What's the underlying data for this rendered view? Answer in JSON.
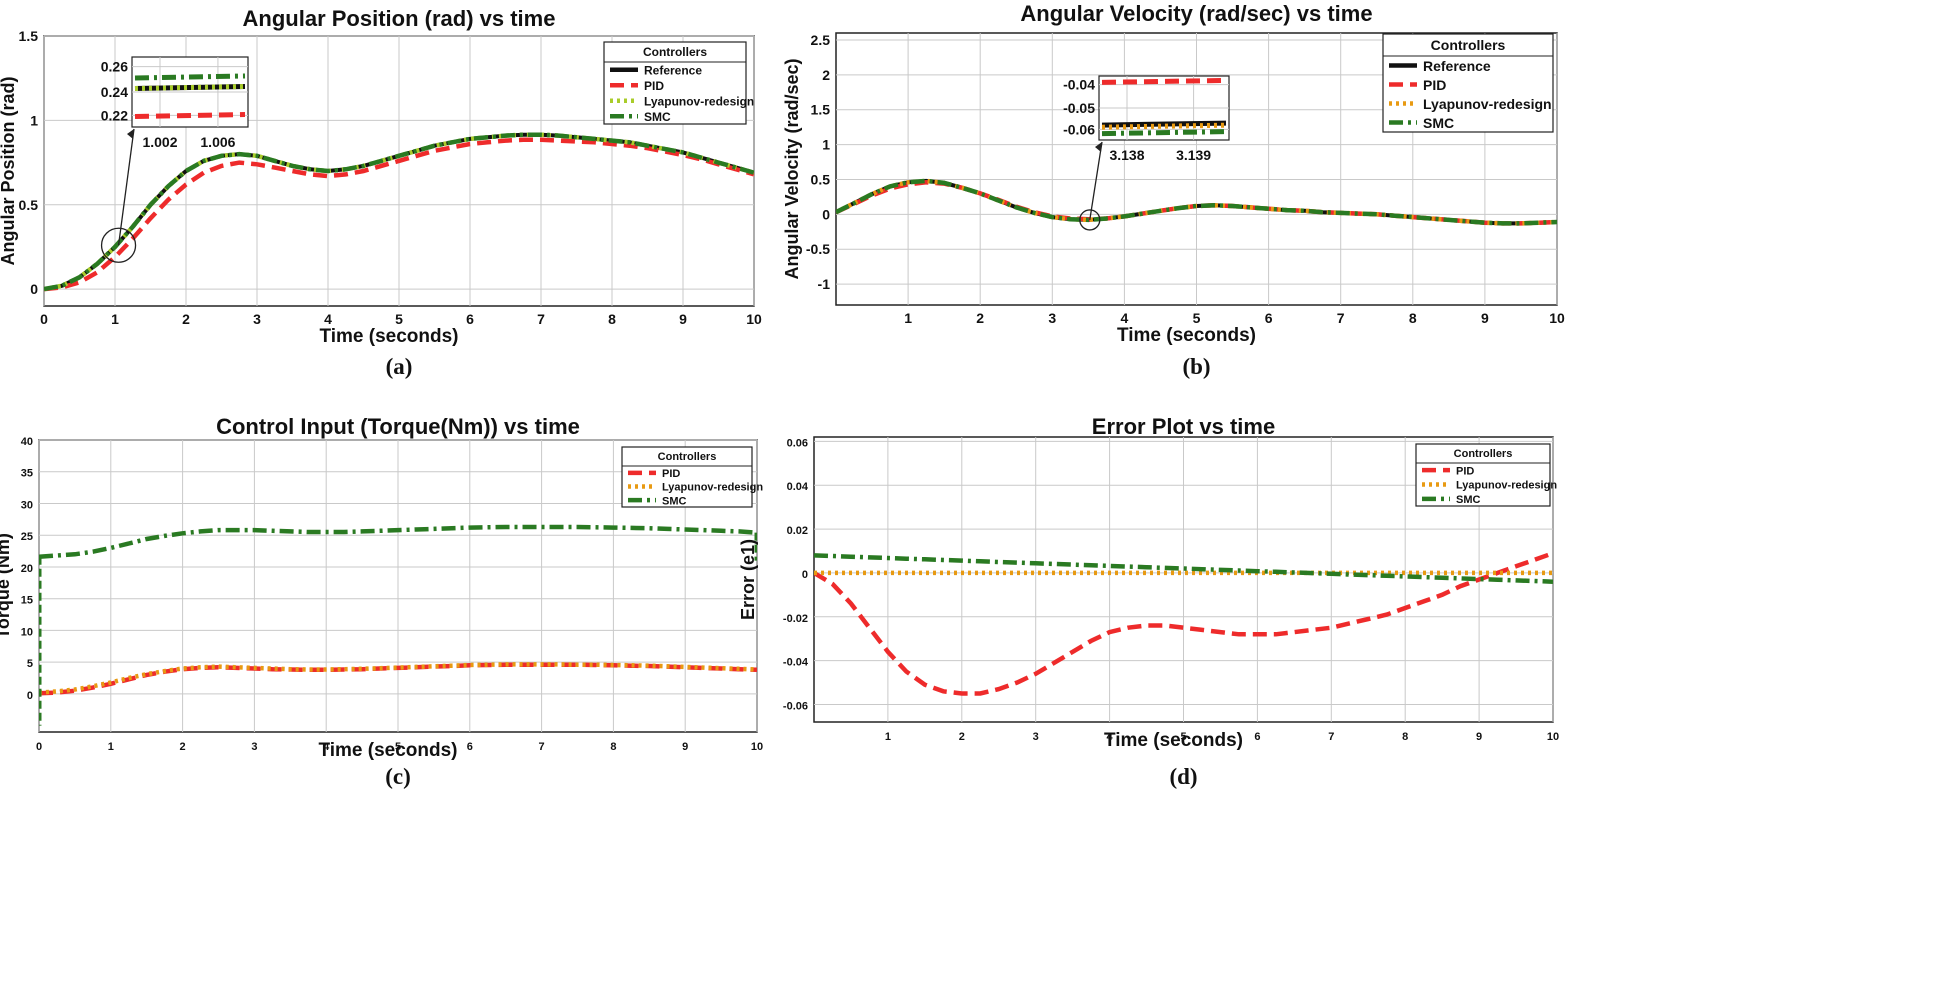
{
  "colors": {
    "reference": "#111111",
    "pid": "#ee2b2b",
    "lyap_ab": "#a9cc2a",
    "lyap_cd": "#e89a12",
    "smc": "#2a7a22",
    "grid": "#c9c9c9",
    "axis": "#222222"
  },
  "legend_title": "Controllers",
  "xlabel_common": "Time (seconds)",
  "chart_data": [
    {
      "id": "a",
      "type": "line",
      "title": "Angular Position (rad) vs time",
      "xlabel": "Time (seconds)",
      "ylabel": "Angular Position (rad)",
      "caption": "(a)",
      "xlim": [
        0,
        10
      ],
      "ylim": [
        -0.1,
        1.5
      ],
      "xticks": [
        0,
        1,
        2,
        3,
        4,
        5,
        6,
        7,
        8,
        9,
        10
      ],
      "yticks": [
        0,
        0.5,
        1,
        1.5
      ],
      "x": [
        0,
        0.25,
        0.5,
        0.75,
        1,
        1.25,
        1.5,
        1.75,
        2,
        2.25,
        2.5,
        2.75,
        3,
        3.25,
        3.5,
        3.75,
        4,
        4.25,
        4.5,
        4.75,
        5,
        5.25,
        5.5,
        5.75,
        6,
        6.25,
        6.5,
        6.75,
        7,
        7.25,
        7.5,
        7.75,
        8,
        8.25,
        8.5,
        8.75,
        9,
        9.25,
        9.5,
        9.75,
        10
      ],
      "legend_title": "Controllers",
      "series": [
        {
          "name": "Reference",
          "style": "solid",
          "color_key": "reference",
          "values": [
            0,
            0.02,
            0.07,
            0.15,
            0.25,
            0.37,
            0.5,
            0.61,
            0.7,
            0.76,
            0.79,
            0.8,
            0.79,
            0.76,
            0.73,
            0.71,
            0.7,
            0.71,
            0.73,
            0.76,
            0.79,
            0.82,
            0.85,
            0.87,
            0.89,
            0.9,
            0.91,
            0.915,
            0.915,
            0.91,
            0.9,
            0.89,
            0.88,
            0.87,
            0.85,
            0.83,
            0.81,
            0.78,
            0.75,
            0.72,
            0.69
          ]
        },
        {
          "name": "PID",
          "style": "dash",
          "color_key": "pid",
          "values": [
            0,
            0.01,
            0.04,
            0.1,
            0.19,
            0.3,
            0.42,
            0.53,
            0.62,
            0.69,
            0.73,
            0.75,
            0.74,
            0.72,
            0.7,
            0.68,
            0.67,
            0.68,
            0.7,
            0.73,
            0.76,
            0.79,
            0.82,
            0.84,
            0.86,
            0.87,
            0.88,
            0.885,
            0.885,
            0.88,
            0.875,
            0.87,
            0.86,
            0.85,
            0.835,
            0.815,
            0.795,
            0.77,
            0.74,
            0.71,
            0.68
          ]
        },
        {
          "name": "Lyapunov-redesign",
          "style": "dot",
          "color_key": "lyap_ab",
          "values": [
            0,
            0.02,
            0.07,
            0.15,
            0.25,
            0.37,
            0.5,
            0.61,
            0.7,
            0.76,
            0.79,
            0.8,
            0.79,
            0.76,
            0.73,
            0.71,
            0.7,
            0.71,
            0.73,
            0.76,
            0.79,
            0.82,
            0.85,
            0.87,
            0.89,
            0.9,
            0.91,
            0.915,
            0.915,
            0.91,
            0.9,
            0.89,
            0.88,
            0.87,
            0.85,
            0.83,
            0.81,
            0.78,
            0.75,
            0.72,
            0.69
          ]
        },
        {
          "name": "SMC",
          "style": "dashdot",
          "color_key": "smc",
          "values": [
            0,
            0.02,
            0.07,
            0.15,
            0.25,
            0.37,
            0.5,
            0.61,
            0.7,
            0.76,
            0.79,
            0.8,
            0.79,
            0.76,
            0.73,
            0.71,
            0.7,
            0.71,
            0.73,
            0.76,
            0.79,
            0.82,
            0.85,
            0.87,
            0.89,
            0.9,
            0.91,
            0.915,
            0.915,
            0.91,
            0.9,
            0.89,
            0.88,
            0.87,
            0.85,
            0.83,
            0.81,
            0.78,
            0.75,
            0.72,
            0.69
          ]
        }
      ],
      "inset": {
        "xticks": [
          "1.002",
          "1.006"
        ],
        "yticks": [
          "0.26",
          "0.24",
          "0.22"
        ],
        "series": [
          {
            "color_key": "smc",
            "style": "dashdot",
            "value": 0.252
          },
          {
            "color_key": "reference",
            "style": "solid",
            "value": 0.243
          },
          {
            "color_key": "lyap_ab",
            "style": "dot",
            "value": 0.243
          },
          {
            "color_key": "pid",
            "style": "dash",
            "value": 0.219
          }
        ],
        "zoom_point": [
          1.05,
          0.26
        ]
      }
    },
    {
      "id": "b",
      "type": "line",
      "title": "Angular Velocity (rad/sec) vs time",
      "xlabel": "Time (seconds)",
      "ylabel": "Angular Velocity (rad/sec)",
      "caption": "(b)",
      "xlim": [
        0,
        10
      ],
      "ylim": [
        -1.3,
        2.6
      ],
      "xticks": [
        1,
        2,
        3,
        4,
        5,
        6,
        7,
        8,
        9,
        10
      ],
      "yticks": [
        -1,
        -0.5,
        0,
        0.5,
        1,
        1.5,
        2,
        2.5
      ],
      "x": [
        0,
        0.25,
        0.5,
        0.75,
        1,
        1.25,
        1.5,
        1.75,
        2,
        2.25,
        2.5,
        2.75,
        3,
        3.25,
        3.5,
        3.75,
        4,
        4.25,
        4.5,
        4.75,
        5,
        5.25,
        5.5,
        5.75,
        6,
        6.25,
        6.5,
        6.75,
        7,
        7.25,
        7.5,
        7.75,
        8,
        8.25,
        8.5,
        8.75,
        9,
        9.25,
        9.5,
        9.75,
        10
      ],
      "legend_title": "Controllers",
      "series": [
        {
          "name": "Reference",
          "style": "solid",
          "color_key": "reference",
          "values": [
            0.03,
            0.16,
            0.29,
            0.4,
            0.46,
            0.48,
            0.45,
            0.38,
            0.3,
            0.2,
            0.1,
            0.02,
            -0.04,
            -0.07,
            -0.08,
            -0.06,
            -0.03,
            0.01,
            0.05,
            0.09,
            0.12,
            0.13,
            0.12,
            0.1,
            0.08,
            0.06,
            0.05,
            0.03,
            0.02,
            0.01,
            0.0,
            -0.02,
            -0.04,
            -0.06,
            -0.08,
            -0.1,
            -0.12,
            -0.13,
            -0.13,
            -0.12,
            -0.11
          ]
        },
        {
          "name": "PID",
          "style": "dash",
          "color_key": "pid",
          "values": [
            0.03,
            0.15,
            0.27,
            0.37,
            0.43,
            0.46,
            0.44,
            0.38,
            0.3,
            0.21,
            0.11,
            0.03,
            -0.03,
            -0.06,
            -0.07,
            -0.06,
            -0.03,
            0.01,
            0.05,
            0.09,
            0.12,
            0.13,
            0.12,
            0.1,
            0.08,
            0.06,
            0.05,
            0.03,
            0.02,
            0.01,
            0.0,
            -0.02,
            -0.04,
            -0.06,
            -0.08,
            -0.1,
            -0.12,
            -0.13,
            -0.13,
            -0.12,
            -0.11
          ]
        },
        {
          "name": "Lyapunov-redesign",
          "style": "dot",
          "color_key": "lyap_cd",
          "values": [
            0.03,
            0.16,
            0.29,
            0.4,
            0.46,
            0.48,
            0.45,
            0.38,
            0.3,
            0.2,
            0.1,
            0.02,
            -0.04,
            -0.07,
            -0.08,
            -0.06,
            -0.03,
            0.01,
            0.05,
            0.09,
            0.12,
            0.13,
            0.12,
            0.1,
            0.08,
            0.06,
            0.05,
            0.03,
            0.02,
            0.01,
            0.0,
            -0.02,
            -0.04,
            -0.06,
            -0.08,
            -0.1,
            -0.12,
            -0.13,
            -0.13,
            -0.12,
            -0.11
          ]
        },
        {
          "name": "SMC",
          "style": "dashdot",
          "color_key": "smc",
          "values": [
            0.03,
            0.16,
            0.29,
            0.4,
            0.46,
            0.48,
            0.45,
            0.38,
            0.3,
            0.2,
            0.1,
            0.02,
            -0.04,
            -0.07,
            -0.08,
            -0.06,
            -0.03,
            0.01,
            0.05,
            0.09,
            0.12,
            0.13,
            0.12,
            0.1,
            0.08,
            0.06,
            0.05,
            0.03,
            0.02,
            0.01,
            0.0,
            -0.02,
            -0.04,
            -0.06,
            -0.08,
            -0.1,
            -0.12,
            -0.13,
            -0.13,
            -0.12,
            -0.11
          ]
        }
      ],
      "inset": {
        "xticks": [
          "3.138",
          "3.139"
        ],
        "yticks": [
          "-0.04",
          "-0.05",
          "-0.06"
        ],
        "series": [
          {
            "color_key": "pid",
            "style": "dash",
            "value": -0.038
          },
          {
            "color_key": "reference",
            "style": "solid",
            "value": -0.058
          },
          {
            "color_key": "lyap_cd",
            "style": "dot",
            "value": -0.059
          },
          {
            "color_key": "smc",
            "style": "dashdot",
            "value": -0.062
          }
        ],
        "zoom_point": [
          3.52,
          -0.08
        ]
      }
    },
    {
      "id": "c",
      "type": "line",
      "title": "Control Input (Torque(Nm)) vs time",
      "xlabel": "Time (seconds)",
      "ylabel": "Torque (Nm)",
      "caption": "(c)",
      "xlim": [
        0,
        10
      ],
      "ylim": [
        -6,
        40
      ],
      "xticks": [
        0,
        1,
        2,
        3,
        4,
        5,
        6,
        7,
        8,
        9,
        10
      ],
      "yticks": [
        0,
        5,
        10,
        15,
        20,
        25,
        30,
        35,
        40
      ],
      "x": [
        0,
        0.25,
        0.5,
        0.75,
        1,
        1.25,
        1.5,
        1.75,
        2,
        2.25,
        2.5,
        2.75,
        3,
        3.25,
        3.5,
        3.75,
        4,
        4.25,
        4.5,
        4.75,
        5,
        5.25,
        5.5,
        5.75,
        6,
        6.25,
        6.5,
        6.75,
        7,
        7.25,
        7.5,
        7.75,
        8,
        8.25,
        8.5,
        8.75,
        9,
        9.25,
        9.5,
        9.75,
        10
      ],
      "legend_title": "Controllers",
      "series": [
        {
          "name": "PID",
          "style": "dash",
          "color_key": "pid",
          "values": [
            0.1,
            0.2,
            0.5,
            1.0,
            1.6,
            2.3,
            3.0,
            3.5,
            3.9,
            4.1,
            4.2,
            4.1,
            4.0,
            3.9,
            3.85,
            3.8,
            3.8,
            3.85,
            3.9,
            4.0,
            4.1,
            4.2,
            4.3,
            4.4,
            4.5,
            4.55,
            4.6,
            4.6,
            4.6,
            4.6,
            4.6,
            4.55,
            4.5,
            4.45,
            4.4,
            4.3,
            4.2,
            4.1,
            4.0,
            3.9,
            3.8
          ]
        },
        {
          "name": "Lyapunov-redesign",
          "style": "dot",
          "color_key": "lyap_cd",
          "values": [
            0.2,
            0.4,
            0.7,
            1.2,
            1.8,
            2.5,
            3.1,
            3.6,
            4.0,
            4.2,
            4.3,
            4.2,
            4.1,
            4.0,
            3.9,
            3.85,
            3.85,
            3.9,
            3.95,
            4.05,
            4.15,
            4.25,
            4.35,
            4.45,
            4.55,
            4.6,
            4.65,
            4.65,
            4.65,
            4.65,
            4.6,
            4.6,
            4.55,
            4.5,
            4.45,
            4.35,
            4.25,
            4.15,
            4.05,
            3.95,
            3.85
          ]
        },
        {
          "name": "SMC",
          "style": "dashdot",
          "color_key": "smc",
          "values": [
            21.6,
            21.8,
            22.0,
            22.4,
            23.0,
            23.7,
            24.4,
            24.9,
            25.3,
            25.6,
            25.8,
            25.8,
            25.8,
            25.7,
            25.6,
            25.5,
            25.5,
            25.5,
            25.6,
            25.7,
            25.8,
            25.9,
            26.0,
            26.1,
            26.2,
            26.25,
            26.3,
            26.3,
            26.3,
            26.3,
            26.3,
            26.25,
            26.2,
            26.15,
            26.1,
            26.0,
            25.9,
            25.8,
            25.7,
            25.6,
            25.4
          ]
        }
      ]
    },
    {
      "id": "d",
      "type": "line",
      "title": "Error Plot vs time",
      "xlabel": "Time (seconds)",
      "ylabel": "Error (e1)",
      "caption": "(d)",
      "xlim": [
        0,
        10
      ],
      "ylim": [
        -0.068,
        0.062
      ],
      "xticks": [
        1,
        2,
        3,
        4,
        5,
        6,
        7,
        8,
        9,
        10
      ],
      "yticks": [
        -0.06,
        -0.04,
        -0.02,
        0,
        0.02,
        0.04,
        0.06
      ],
      "x": [
        0,
        0.25,
        0.5,
        0.75,
        1,
        1.25,
        1.5,
        1.75,
        2,
        2.25,
        2.5,
        2.75,
        3,
        3.25,
        3.5,
        3.75,
        4,
        4.25,
        4.5,
        4.75,
        5,
        5.25,
        5.5,
        5.75,
        6,
        6.25,
        6.5,
        6.75,
        7,
        7.25,
        7.5,
        7.75,
        8,
        8.25,
        8.5,
        8.75,
        9,
        9.25,
        9.5,
        9.75,
        10
      ],
      "legend_title": "Controllers",
      "series": [
        {
          "name": "PID",
          "style": "dash",
          "color_key": "pid",
          "values": [
            0,
            -0.005,
            -0.014,
            -0.025,
            -0.036,
            -0.045,
            -0.051,
            -0.054,
            -0.055,
            -0.055,
            -0.053,
            -0.05,
            -0.046,
            -0.041,
            -0.036,
            -0.031,
            -0.027,
            -0.025,
            -0.024,
            -0.024,
            -0.025,
            -0.026,
            -0.027,
            -0.028,
            -0.028,
            -0.028,
            -0.027,
            -0.026,
            -0.025,
            -0.023,
            -0.021,
            -0.019,
            -0.016,
            -0.013,
            -0.01,
            -0.006,
            -0.003,
            0.0,
            0.003,
            0.006,
            0.009
          ]
        },
        {
          "name": "Lyapunov-redesign",
          "style": "dot",
          "color_key": "lyap_cd",
          "values": [
            0,
            0,
            0,
            0,
            0,
            0,
            0,
            0,
            0,
            0,
            0,
            0,
            0,
            0,
            0,
            0,
            0,
            0,
            0,
            0,
            0,
            0,
            0,
            0,
            0,
            0,
            0,
            0,
            0,
            0,
            0,
            0,
            0,
            0,
            0,
            0,
            0,
            0,
            0,
            0,
            0
          ]
        },
        {
          "name": "SMC",
          "style": "dashdot",
          "color_key": "smc",
          "values": [
            0.008,
            0.0077,
            0.0074,
            0.0071,
            0.0068,
            0.0065,
            0.0062,
            0.0059,
            0.0056,
            0.0053,
            0.005,
            0.0047,
            0.0044,
            0.0041,
            0.0038,
            0.0035,
            0.0032,
            0.0029,
            0.0026,
            0.0023,
            0.002,
            0.0017,
            0.0014,
            0.0011,
            0.0008,
            0.0005,
            0.0002,
            -0.0001,
            -0.0004,
            -0.0007,
            -0.001,
            -0.0013,
            -0.0016,
            -0.0019,
            -0.0022,
            -0.0025,
            -0.0028,
            -0.0031,
            -0.0034,
            -0.0037,
            -0.004
          ]
        }
      ]
    }
  ]
}
